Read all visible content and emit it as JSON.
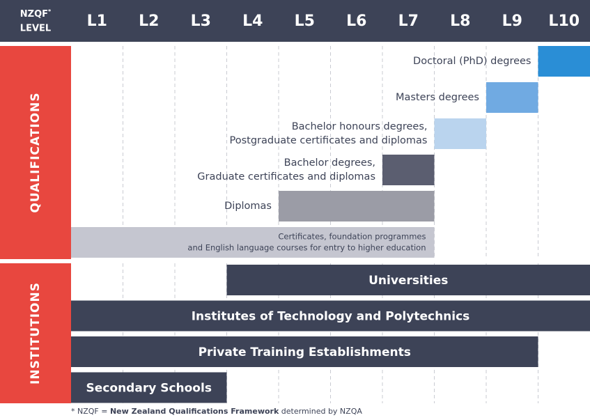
{
  "header": {
    "title": "NZQF",
    "marker": "*",
    "subtitle": "LEVEL",
    "levels": [
      "L1",
      "L2",
      "L3",
      "L4",
      "L5",
      "L6",
      "L7",
      "L8",
      "L9",
      "L10"
    ]
  },
  "sections": [
    {
      "title": "QUALIFICATIONS",
      "color": "#e8473f",
      "rows": [
        {
          "label_lines": [
            "Doctoral (PhD) degrees"
          ],
          "from": 10,
          "to": 10,
          "color": "#2a8ed6"
        },
        {
          "label_lines": [
            "Masters degrees"
          ],
          "from": 9,
          "to": 9,
          "color": "#70aae2"
        },
        {
          "label_lines": [
            "Bachelor honours degrees,",
            "Postgraduate certificates and diplomas"
          ],
          "from": 8,
          "to": 8,
          "color": "#bad4ee"
        },
        {
          "label_lines": [
            "Bachelor degrees,",
            "Graduate certificates and diplomas"
          ],
          "from": 7,
          "to": 7,
          "color": "#5b5e70"
        },
        {
          "label_lines": [
            "Diplomas"
          ],
          "from": 5,
          "to": 7,
          "color": "#9b9ca6"
        },
        {
          "label_lines": [
            "Certificates, foundation programmes",
            "and English language courses for entry to higher education"
          ],
          "from": 1,
          "to": 7,
          "color": "#c5c6d0"
        }
      ]
    },
    {
      "title": "INSTITUTIONS",
      "color": "#e8473f",
      "rows": [
        {
          "label_lines": [
            "Universities"
          ],
          "from": 4,
          "to": 10,
          "color": "#3d4357"
        },
        {
          "label_lines": [
            "Institutes of Technology and Polytechnics"
          ],
          "from": 1,
          "to": 10,
          "color": "#3d4357"
        },
        {
          "label_lines": [
            "Private Training Establishments"
          ],
          "from": 1,
          "to": 9,
          "color": "#3d4357"
        },
        {
          "label_lines": [
            "Secondary Schools"
          ],
          "from": 1,
          "to": 3,
          "color": "#3d4357"
        }
      ]
    }
  ],
  "footnote": {
    "prefix": "* NZQF = ",
    "emphasis": "New Zealand Qualifications Framework",
    "suffix": " determined by NZQA"
  }
}
